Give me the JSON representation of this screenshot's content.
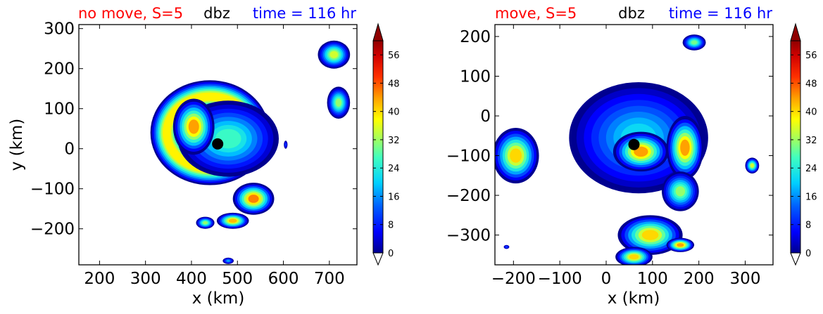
{
  "figure": {
    "panels": [
      {
        "title_left": "no move, S=5",
        "title_center": "dbz",
        "title_right": "time = 116 hr",
        "xlabel": "x (km)",
        "ylabel": "y (km)",
        "xlim": [
          155,
          760
        ],
        "ylim": [
          -290,
          310
        ],
        "xticks": [
          200,
          300,
          400,
          500,
          600,
          700
        ],
        "yticks": [
          -200,
          -100,
          0,
          100,
          200,
          300
        ],
        "colorbar_ticks": [
          0,
          8,
          16,
          24,
          32,
          40,
          48,
          56
        ]
      },
      {
        "title_left": "move, S=5",
        "title_center": "dbz",
        "title_right": "time = 116 hr",
        "xlabel": "x (km)",
        "ylabel": "",
        "xlim": [
          -240,
          360
        ],
        "ylim": [
          -375,
          230
        ],
        "xticks": [
          -200,
          -100,
          0,
          100,
          200,
          300
        ],
        "yticks": [
          -300,
          -200,
          -100,
          0,
          100,
          200
        ],
        "colorbar_ticks": [
          0,
          8,
          16,
          24,
          32,
          40,
          48,
          56
        ]
      }
    ],
    "colors": {
      "title_left": "#ff0000",
      "title_center": "#000000",
      "title_right": "#0000ff",
      "marker": "#000000"
    }
  },
  "chart_data": [
    {
      "type": "contourf",
      "variable": "dbz",
      "scale_range": [
        0,
        60
      ],
      "center_marker": {
        "x": 457,
        "y": 12
      },
      "features": [
        {
          "kind": "ring",
          "cx": 440,
          "cy": 40,
          "rx": 130,
          "ry": 125,
          "peak": 44,
          "gap_start_deg": 15,
          "gap_end_deg": 90
        },
        {
          "kind": "blob",
          "cx": 480,
          "cy": 25,
          "rx": 110,
          "ry": 95,
          "peak": 30
        },
        {
          "kind": "blob",
          "cx": 405,
          "cy": 55,
          "rx": 45,
          "ry": 70,
          "peak": 50
        },
        {
          "kind": "blob",
          "cx": 535,
          "cy": -125,
          "rx": 45,
          "ry": 40,
          "peak": 52
        },
        {
          "kind": "blob",
          "cx": 490,
          "cy": -180,
          "rx": 35,
          "ry": 20,
          "peak": 48
        },
        {
          "kind": "blob",
          "cx": 430,
          "cy": -185,
          "rx": 20,
          "ry": 15,
          "peak": 36
        },
        {
          "kind": "blob",
          "cx": 710,
          "cy": 235,
          "rx": 35,
          "ry": 35,
          "peak": 40
        },
        {
          "kind": "blob",
          "cx": 720,
          "cy": 115,
          "rx": 25,
          "ry": 40,
          "peak": 36
        },
        {
          "kind": "blob",
          "cx": 480,
          "cy": -280,
          "rx": 12,
          "ry": 8,
          "peak": 20
        },
        {
          "kind": "blob",
          "cx": 605,
          "cy": 10,
          "rx": 4,
          "ry": 10,
          "peak": 12
        }
      ]
    },
    {
      "type": "contourf",
      "variable": "dbz",
      "scale_range": [
        0,
        60
      ],
      "center_marker": {
        "x": 60,
        "y": -72
      },
      "features": [
        {
          "kind": "ring",
          "cx": 75,
          "cy": -60,
          "rx": 125,
          "ry": 115,
          "peak": 40,
          "gap_start_deg": 200,
          "gap_end_deg": 250
        },
        {
          "kind": "blob",
          "cx": 70,
          "cy": -55,
          "rx": 150,
          "ry": 140,
          "peak": 24
        },
        {
          "kind": "blob",
          "cx": 75,
          "cy": -90,
          "rx": 60,
          "ry": 50,
          "peak": 50
        },
        {
          "kind": "blob",
          "cx": 170,
          "cy": -80,
          "rx": 40,
          "ry": 80,
          "peak": 50
        },
        {
          "kind": "blob",
          "cx": 160,
          "cy": -190,
          "rx": 40,
          "ry": 50,
          "peak": 36
        },
        {
          "kind": "blob",
          "cx": -195,
          "cy": -100,
          "rx": 50,
          "ry": 70,
          "peak": 46
        },
        {
          "kind": "blob",
          "cx": 95,
          "cy": -300,
          "rx": 70,
          "ry": 50,
          "peak": 46
        },
        {
          "kind": "blob",
          "cx": 60,
          "cy": -355,
          "rx": 40,
          "ry": 25,
          "peak": 46
        },
        {
          "kind": "blob",
          "cx": 160,
          "cy": -325,
          "rx": 30,
          "ry": 18,
          "peak": 50
        },
        {
          "kind": "blob",
          "cx": 190,
          "cy": 185,
          "rx": 25,
          "ry": 20,
          "peak": 34
        },
        {
          "kind": "blob",
          "cx": 315,
          "cy": -125,
          "rx": 15,
          "ry": 20,
          "peak": 40
        },
        {
          "kind": "blob",
          "cx": -215,
          "cy": -330,
          "rx": 6,
          "ry": 5,
          "peak": 14
        }
      ]
    }
  ]
}
